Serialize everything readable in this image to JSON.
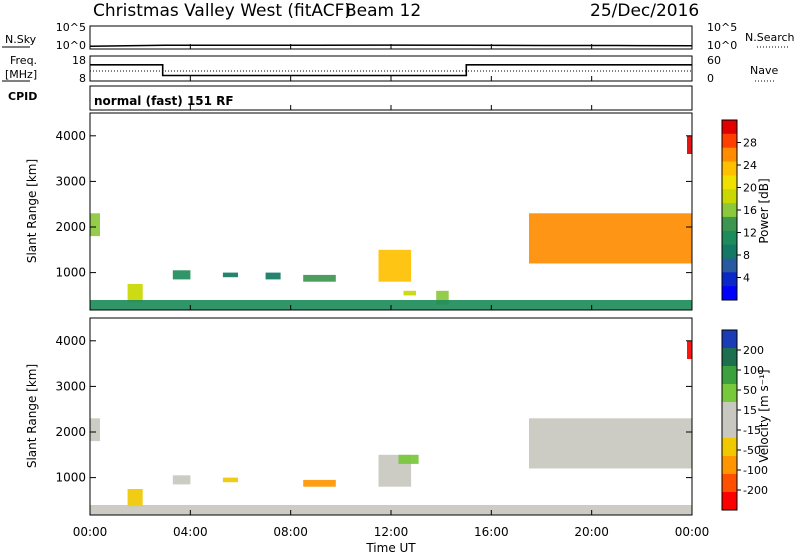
{
  "header": {
    "station": "Christmas Valley West (fitACF)",
    "beam": "Beam 12",
    "date": "25/Dec/2016"
  },
  "noise_panel": {
    "left_label": "N.Sky",
    "right_label": "N.Search",
    "left_ticks": [
      "10^5",
      "10^0"
    ],
    "right_ticks": [
      "10^5",
      "10^0"
    ]
  },
  "freq_panel": {
    "left_label_1": "Freq.",
    "left_label_2": "[MHz]",
    "right_label": "Nave",
    "left_ticks": [
      "18",
      "8"
    ],
    "right_ticks": [
      "60",
      "0"
    ]
  },
  "cpid": {
    "label": "CPID",
    "text": "normal (fast) 151 RF"
  },
  "xaxis": {
    "ticks": [
      "00:00",
      "04:00",
      "08:00",
      "12:00",
      "16:00",
      "20:00",
      "00:00"
    ],
    "label": "Time UT"
  },
  "yaxis": {
    "label": "Slant Range [km]",
    "ticks": [
      "1000",
      "2000",
      "3000",
      "4000"
    ]
  },
  "colorbars": {
    "power": {
      "label": "Power [dB]",
      "ticks": [
        "28",
        "24",
        "20",
        "16",
        "12",
        "8",
        "4"
      ],
      "colors": [
        "#e00000",
        "#ff4000",
        "#ff8c00",
        "#ffc000",
        "#f0e000",
        "#c8d800",
        "#8cc83c",
        "#3c9650",
        "#1e8c5a",
        "#147864",
        "#285aa0",
        "#0a28c8",
        "#0000ff"
      ]
    },
    "velocity": {
      "label": "Velocity [m s⁻¹]",
      "ticks": [
        "200",
        "100",
        "50",
        "15",
        "-15",
        "-50",
        "-100",
        "-200"
      ],
      "colors": [
        "#1a3cb4",
        "#1e6e50",
        "#3ca03c",
        "#78c83c",
        "#c8c8c0",
        "#c8c8c0",
        "#f0c800",
        "#ff9600",
        "#ff5000",
        "#ff0000"
      ]
    }
  },
  "chart_data": [
    {
      "type": "line",
      "title": "N.Sky / N.Search",
      "x": [
        0,
        3,
        6,
        9,
        12,
        15,
        18,
        21,
        24
      ],
      "series": [
        {
          "name": "N.Sky",
          "values": [
            0.6,
            0.8,
            0.8,
            0.8,
            0.85,
            0.8,
            0.75,
            0.75,
            0.7
          ]
        }
      ],
      "ylim": [
        0,
        5
      ]
    },
    {
      "type": "line",
      "title": "Freq. / Nave",
      "x": [
        0,
        2.9,
        2.9,
        15.0,
        15.0,
        24
      ],
      "series": [
        {
          "name": "Freq.",
          "values": [
            14.5,
            14.5,
            10.2,
            10.2,
            14.5,
            14.5
          ]
        }
      ],
      "ylim": [
        8,
        18
      ]
    },
    {
      "type": "heatmap",
      "title": "Power [dB]",
      "xlabel": "Time UT",
      "ylabel": "Slant Range [km]",
      "xlim": [
        0,
        24
      ],
      "ylim": [
        180,
        4500
      ],
      "value_range": [
        0,
        30
      ],
      "patches": [
        {
          "t": [
            0.0,
            0.4
          ],
          "r": [
            1800,
            2300
          ],
          "value": 16
        },
        {
          "t": [
            1.5,
            2.1
          ],
          "r": [
            350,
            750
          ],
          "value": 18
        },
        {
          "t": [
            3.3,
            4.0
          ],
          "r": [
            850,
            1050
          ],
          "value": 10
        },
        {
          "t": [
            5.3,
            5.9
          ],
          "r": [
            900,
            1000
          ],
          "value": 8
        },
        {
          "t": [
            7.0,
            7.6
          ],
          "r": [
            850,
            1000
          ],
          "value": 8
        },
        {
          "t": [
            8.5,
            9.8
          ],
          "r": [
            800,
            950
          ],
          "value": 12
        },
        {
          "t": [
            11.5,
            12.8
          ],
          "r": [
            800,
            1500
          ],
          "value": 22
        },
        {
          "t": [
            12.5,
            13.0
          ],
          "r": [
            500,
            600
          ],
          "value": 18
        },
        {
          "t": [
            13.8,
            14.3
          ],
          "r": [
            300,
            600
          ],
          "value": 14
        },
        {
          "t": [
            17.5,
            24.0
          ],
          "r": [
            1200,
            2300
          ],
          "value": 25
        },
        {
          "t": [
            23.8,
            24.0
          ],
          "r": [
            3600,
            4000
          ],
          "value": 28
        },
        {
          "t": [
            0.0,
            24.0
          ],
          "r": [
            180,
            400
          ],
          "value": 10
        }
      ]
    },
    {
      "type": "heatmap",
      "title": "Velocity [m s⁻¹]",
      "xlabel": "Time UT",
      "ylabel": "Slant Range [km]",
      "xlim": [
        0,
        24
      ],
      "ylim": [
        180,
        4500
      ],
      "value_range": [
        -200,
        200
      ],
      "patches": [
        {
          "t": [
            0.0,
            0.4
          ],
          "r": [
            1800,
            2300
          ],
          "value": 0
        },
        {
          "t": [
            1.5,
            2.1
          ],
          "r": [
            350,
            750
          ],
          "value": -60
        },
        {
          "t": [
            3.3,
            4.0
          ],
          "r": [
            850,
            1050
          ],
          "value": 40
        },
        {
          "t": [
            5.3,
            5.9
          ],
          "r": [
            900,
            1000
          ],
          "value": -40
        },
        {
          "t": [
            8.5,
            9.8
          ],
          "r": [
            800,
            950
          ],
          "value": -80
        },
        {
          "t": [
            11.5,
            12.8
          ],
          "r": [
            800,
            1500
          ],
          "value": 0
        },
        {
          "t": [
            12.3,
            13.1
          ],
          "r": [
            1300,
            1500
          ],
          "value": 60
        },
        {
          "t": [
            17.5,
            24.0
          ],
          "r": [
            1200,
            2300
          ],
          "value": 0
        },
        {
          "t": [
            23.8,
            24.0
          ],
          "r": [
            3600,
            4000
          ],
          "value": -200
        },
        {
          "t": [
            0.0,
            24.0
          ],
          "r": [
            180,
            400
          ],
          "value": 30
        }
      ]
    }
  ]
}
